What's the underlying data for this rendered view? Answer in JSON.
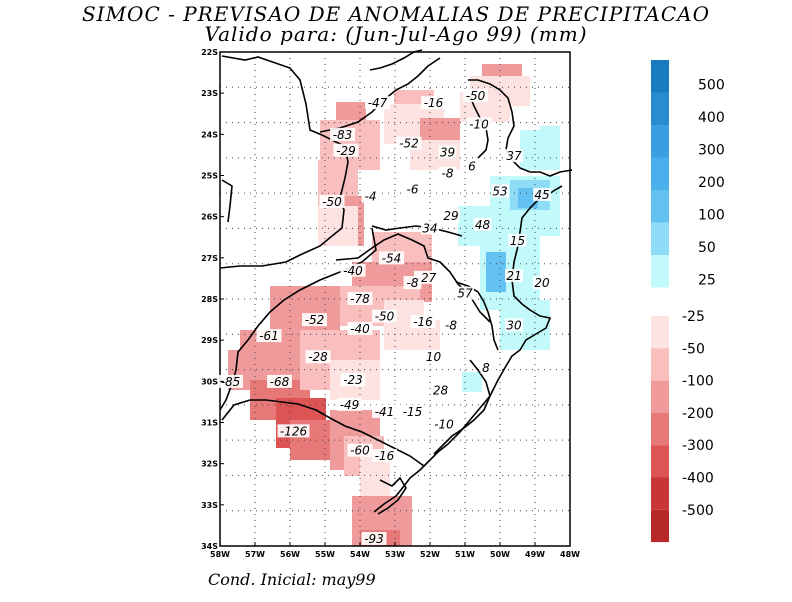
{
  "title": {
    "line1": "SIMOC - PREVISAO DE ANOMALIAS DE PRECIPITACAO",
    "line2": "Valido para: (Jun-Jul-Ago 99) (mm)"
  },
  "footer": "Cond. Inicial: may99",
  "lat_ticks": [
    "22S",
    "23S",
    "24S",
    "25S",
    "26S",
    "27S",
    "28S",
    "29S",
    "30S",
    "31S",
    "32S",
    "33S",
    "34S"
  ],
  "lon_ticks": [
    "58W",
    "57W",
    "56W",
    "55W",
    "54W",
    "53W",
    "52W",
    "51W",
    "50W",
    "49W",
    "48W"
  ],
  "legend_positive": [
    "500",
    "400",
    "300",
    "200",
    "100",
    "50",
    "25"
  ],
  "legend_negative": [
    "-25",
    "-50",
    "-100",
    "-200",
    "-300",
    "-400",
    "-500"
  ],
  "colors": {
    "pos_500": "#1a7bc0",
    "pos_400": "#2b8bd0",
    "pos_300": "#3a9ee0",
    "pos_200": "#4ab0ec",
    "pos_100": "#63c2f2",
    "pos_50": "#8fdcf8",
    "pos_25": "#c2fafc",
    "neg_25": "#fde2e2",
    "neg_50": "#f9bfbf",
    "neg_100": "#f09b9b",
    "neg_200": "#e67878",
    "neg_300": "#dc5454",
    "neg_400": "#c83636",
    "neg_500": "#b82a2a"
  },
  "anomaly_labels": [
    {
      "text": "-47",
      "lon": -53.5,
      "lat": -23.45
    },
    {
      "text": "-16",
      "lon": -51.9,
      "lat": -23.45
    },
    {
      "text": "-50",
      "lon": -50.7,
      "lat": -23.25
    },
    {
      "text": "-10",
      "lon": -50.6,
      "lat": -24.05
    },
    {
      "text": "-83",
      "lon": -54.5,
      "lat": -24.35
    },
    {
      "text": "-52",
      "lon": -52.6,
      "lat": -24.6
    },
    {
      "text": "39",
      "lon": -51.5,
      "lat": -24.85
    },
    {
      "text": "37",
      "lon": -49.6,
      "lat": -24.95
    },
    {
      "text": "-29",
      "lon": -54.4,
      "lat": -24.8
    },
    {
      "text": "6",
      "lon": -50.8,
      "lat": -25.25
    },
    {
      "text": "-8",
      "lon": -51.5,
      "lat": -25.45
    },
    {
      "text": "-6",
      "lon": -52.5,
      "lat": -25.9
    },
    {
      "text": "-4",
      "lon": -53.7,
      "lat": -26.1
    },
    {
      "text": "53",
      "lon": -50.0,
      "lat": -25.95
    },
    {
      "text": "45",
      "lon": -48.8,
      "lat": -26.05
    },
    {
      "text": "-50",
      "lon": -54.8,
      "lat": -26.25
    },
    {
      "text": "29",
      "lon": -51.4,
      "lat": -26.65
    },
    {
      "text": "48",
      "lon": -50.5,
      "lat": -26.9
    },
    {
      "text": "34",
      "lon": -52.0,
      "lat": -27.0
    },
    {
      "text": "15",
      "lon": -49.5,
      "lat": -27.35
    },
    {
      "text": "-54",
      "lon": -53.1,
      "lat": -27.85
    },
    {
      "text": "-40",
      "lon": -54.2,
      "lat": -28.2
    },
    {
      "text": "-27",
      "lon": -52.1,
      "lat": -28.4
    },
    {
      "text": "-8",
      "lon": -52.5,
      "lat": -28.55
    },
    {
      "text": "21",
      "lon": -49.6,
      "lat": -28.35
    },
    {
      "text": "20",
      "lon": -48.8,
      "lat": -28.55
    },
    {
      "text": "57",
      "lon": -51.0,
      "lat": -28.85
    },
    {
      "text": "-78",
      "lon": -54.0,
      "lat": -29.0
    },
    {
      "text": "-50",
      "lon": -53.3,
      "lat": -29.5
    },
    {
      "text": "-16",
      "lon": -52.2,
      "lat": -29.65
    },
    {
      "text": "-8",
      "lon": -51.4,
      "lat": -29.75
    },
    {
      "text": "30",
      "lon": -49.6,
      "lat": -29.75
    },
    {
      "text": "-52",
      "lon": -55.3,
      "lat": -29.6
    },
    {
      "text": "-40",
      "lon": -54.0,
      "lat": -29.85
    },
    {
      "text": "-61",
      "lon": -56.6,
      "lat": -30.05
    },
    {
      "text": "-28",
      "lon": -55.2,
      "lat": -30.65
    },
    {
      "text": "10",
      "lon": -51.9,
      "lat": -30.65
    },
    {
      "text": "8",
      "lon": -50.4,
      "lat": -30.95
    },
    {
      "text": "-23",
      "lon": -54.2,
      "lat": -31.3
    },
    {
      "text": "-85",
      "lon": -57.7,
      "lat": -31.35
    },
    {
      "text": "-68",
      "lon": -56.3,
      "lat": -31.35
    },
    {
      "text": "28",
      "lon": -51.7,
      "lat": -31.6
    },
    {
      "text": "-49",
      "lon": -54.3,
      "lat": -32.0
    },
    {
      "text": "-41",
      "lon": -53.3,
      "lat": -32.2
    },
    {
      "text": "-15",
      "lon": -52.5,
      "lat": -32.2
    },
    {
      "text": "-10",
      "lon": -51.6,
      "lat": -32.55
    },
    {
      "text": "-126",
      "lon": -55.9,
      "lat": -32.75
    },
    {
      "text": "-60",
      "lon": -54.0,
      "lat": -33.3
    },
    {
      "text": "-16",
      "lon": -53.3,
      "lat": -33.45
    },
    {
      "text": "-93",
      "lon": -53.6,
      "lat": -35.8
    }
  ]
}
